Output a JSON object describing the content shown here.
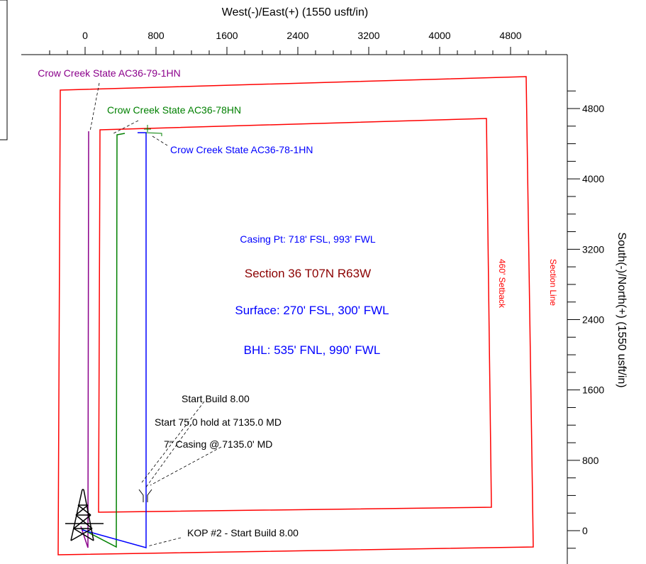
{
  "top_axis": {
    "title": "West(-)/East(+) (1550 usft/in)",
    "ticks": [
      {
        "value": 0,
        "label": "0"
      },
      {
        "value": 800,
        "label": "800"
      },
      {
        "value": 1600,
        "label": "1600"
      },
      {
        "value": 2400,
        "label": "2400"
      },
      {
        "value": 3200,
        "label": "3200"
      },
      {
        "value": 4000,
        "label": "4000"
      },
      {
        "value": 4800,
        "label": "4800"
      }
    ]
  },
  "right_axis": {
    "title": "South(-)/North(+) (1550 usft/in)",
    "ticks": [
      {
        "value": 0,
        "label": "0"
      },
      {
        "value": 800,
        "label": "800"
      },
      {
        "value": 1600,
        "label": "1600"
      },
      {
        "value": 2400,
        "label": "2400"
      },
      {
        "value": 3200,
        "label": "3200"
      },
      {
        "value": 4000,
        "label": "4000"
      },
      {
        "value": 4800,
        "label": "4800"
      }
    ]
  },
  "colors": {
    "purple": "#8b008b",
    "green": "#008000",
    "blue": "#0000ff",
    "red": "#ff0000",
    "maroon": "#8b0000",
    "black": "#000000"
  },
  "labels": {
    "well_purple": "Crow Creek State AC36-79-1HN",
    "well_green": "Crow Creek State AC36-78HN",
    "well_blue": "Crow Creek State AC36-78-1HN",
    "casing_pt": "Casing Pt: 718' FSL, 993' FWL",
    "section": "Section 36 T07N R63W",
    "surface": "Surface: 270' FSL, 300' FWL",
    "bhl": "BHL: 535' FNL, 990' FWL",
    "setback": "460' Setback",
    "section_line": "Section Line",
    "start_build": "Start Build 8.00",
    "start_hold": "Start 75.0 hold at 7135.0 MD",
    "casing": "7\" Casing @ 7135.0' MD",
    "kop": "KOP #2 - Start Build 8.00"
  }
}
